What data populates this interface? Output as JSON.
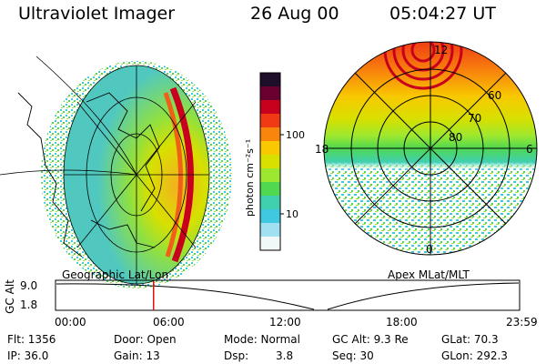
{
  "header": {
    "instrument": "Ultraviolet Imager",
    "date": "26 Aug 00",
    "time": "05:04:27 UT"
  },
  "left_panel": {
    "caption": "Geographic Lat/Lon"
  },
  "right_panel": {
    "caption": "Apex MLat/MLT",
    "lat_labels": [
      "60",
      "70",
      "80"
    ],
    "mlt_labels": [
      "12",
      "18",
      "6",
      "0"
    ]
  },
  "colorbar": {
    "unit_label": "photon cm⁻²s⁻¹",
    "ticks": [
      "100",
      "10"
    ],
    "colors": [
      "#1e0e2a",
      "#6a0030",
      "#c8001e",
      "#f03a14",
      "#f8860c",
      "#f8c800",
      "#d8e000",
      "#9ce830",
      "#50d850",
      "#40d0b0",
      "#40c8e0",
      "#a0e0f0",
      "#f0f8f8"
    ]
  },
  "altitude_plot": {
    "ylabel": "GC Alt",
    "yticks": [
      "9.0",
      "1.8"
    ],
    "xticks": [
      "00:00",
      "06:00",
      "12:00",
      "18:00",
      "23:59"
    ],
    "marker_hour": 5.07,
    "marker_color": "#e01010"
  },
  "info": {
    "flt": "Flt: 1356",
    "door": "Door: Open",
    "mode": "Mode: Normal",
    "gc_alt": "GC Alt: 9.3 Re",
    "glat": "GLat: 70.3",
    "ip": "IP: 36.0",
    "gain": "Gain: 13",
    "dsp": "Dsp:",
    "dsp_value": "3.8",
    "seq": "Seq: 30",
    "glon": "GLon: 292.3"
  }
}
